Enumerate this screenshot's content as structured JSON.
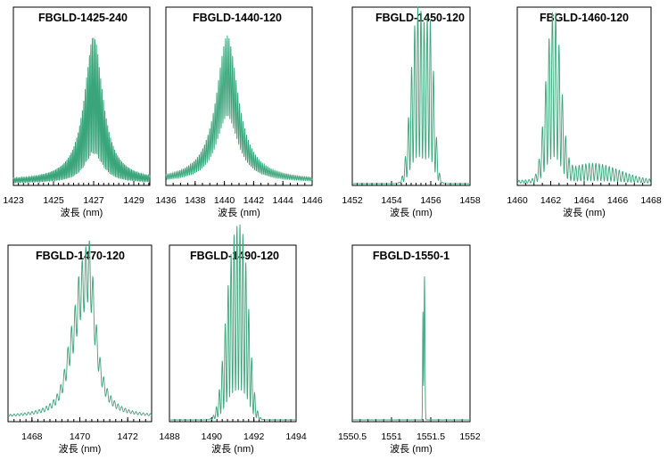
{
  "chart_data": [
    {
      "type": "line",
      "title": "FBGLD-1425-240",
      "xlabel": "波長 (nm)",
      "xlim": [
        1423,
        1429.8
      ],
      "xticks": [
        1423,
        1425,
        1427,
        1429
      ],
      "ylim": [
        0,
        1
      ],
      "center": 1427,
      "width": 0.55,
      "ripple": 0.07,
      "ripple_depth": 0.8,
      "baseline": 0.02,
      "peaks": [
        [
          1427,
          1.0,
          0.55
        ]
      ],
      "profile": "lorentz"
    },
    {
      "type": "line",
      "title": "FBGLD-1440-120",
      "xlabel": "波長 (nm)",
      "xlim": [
        1436,
        1446
      ],
      "xticks": [
        1436,
        1438,
        1440,
        1442,
        1444,
        1446
      ],
      "ylim": [
        0,
        1
      ],
      "center": 1440.2,
      "width": 0.9,
      "ripple": 0.12,
      "ripple_depth": 0.55,
      "baseline": 0.02,
      "peaks": [
        [
          1440.2,
          1.0,
          0.9
        ]
      ],
      "profile": "lorentz"
    },
    {
      "type": "line",
      "title": "FBGLD-1450-120",
      "xlabel": "波長 (nm)",
      "xlim": [
        1452,
        1458
      ],
      "xticks": [
        1452,
        1454,
        1456,
        1458
      ],
      "ylim": [
        0,
        1
      ],
      "center": 1455.5,
      "width": 0.3,
      "ripple": 0.16,
      "ripple_depth": 0.85,
      "baseline": 0.0,
      "peaks": [
        [
          1455.5,
          1.0,
          0.3
        ],
        [
          1455.1,
          0.55,
          0.25
        ],
        [
          1456,
          0.85,
          0.2
        ]
      ],
      "profile": "gauss"
    },
    {
      "type": "line",
      "title": "FBGLD-1460-120",
      "xlabel": "波長 (nm)",
      "xlim": [
        1460,
        1468
      ],
      "xticks": [
        1460,
        1462,
        1464,
        1466,
        1468
      ],
      "ylim": [
        0,
        1
      ],
      "center": 1462.3,
      "width": 0.35,
      "ripple": 0.2,
      "ripple_depth": 0.85,
      "baseline": 0.02,
      "peaks": [
        [
          1462.3,
          1.0,
          0.35
        ],
        [
          1461.8,
          0.45,
          0.3
        ],
        [
          1464.5,
          0.12,
          1.6
        ]
      ],
      "profile": "gauss"
    },
    {
      "type": "line",
      "title": "FBGLD-1470-120",
      "xlabel": "波長 (nm)",
      "xlim": [
        1467,
        1473
      ],
      "xticks": [
        1468,
        1470,
        1472
      ],
      "ylim": [
        0,
        1
      ],
      "center": 1470.4,
      "width": 0.32,
      "ripple": 0.15,
      "ripple_depth": 0.35,
      "baseline": 0.02,
      "peaks": [
        [
          1470.4,
          1.0,
          0.32
        ],
        [
          1470.0,
          0.55,
          0.3
        ],
        [
          1469.6,
          0.25,
          0.3
        ]
      ],
      "profile": "lorentz"
    },
    {
      "type": "line",
      "title": "FBGLD-1490-120",
      "xlabel": "波長 (nm)",
      "xlim": [
        1488,
        1494
      ],
      "xticks": [
        1488,
        1490,
        1492,
        1494
      ],
      "ylim": [
        0,
        1
      ],
      "center": 1491.2,
      "width": 0.35,
      "ripple": 0.14,
      "ripple_depth": 0.85,
      "baseline": 0.0,
      "peaks": [
        [
          1491.2,
          1.0,
          0.35
        ],
        [
          1490.8,
          0.45,
          0.3
        ],
        [
          1491.6,
          0.6,
          0.25
        ]
      ],
      "profile": "gauss"
    },
    {
      "type": "line",
      "title": "FBGLD-1550-1",
      "xlabel": "波長 (nm)",
      "xlim": [
        1550.5,
        1552
      ],
      "xticks": [
        1550.5,
        1551,
        1551.5,
        1552
      ],
      "ylim": [
        0,
        1
      ],
      "center": 1551.42,
      "width": 0.006,
      "ripple": 0,
      "ripple_depth": 0,
      "baseline": 0.0,
      "peaks": [
        [
          1551.42,
          1.0,
          0.006
        ],
        [
          1551.4,
          0.75,
          0.004
        ]
      ],
      "profile": "gauss"
    }
  ],
  "colors": {
    "trace": "#3aa57a",
    "frame": "#000000",
    "background": "#ffffff"
  }
}
